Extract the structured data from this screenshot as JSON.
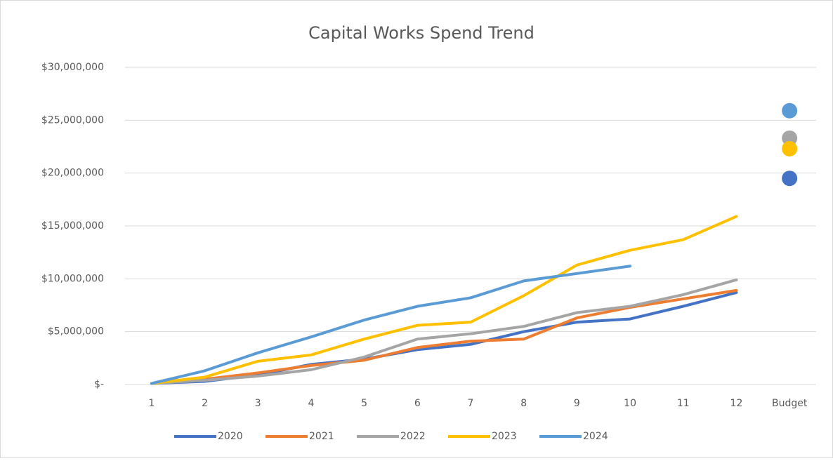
{
  "chart_data": {
    "type": "line",
    "title": "Capital Works Spend Trend",
    "categories": [
      "1",
      "2",
      "3",
      "4",
      "5",
      "6",
      "7",
      "8",
      "9",
      "10",
      "11",
      "12",
      "Budget"
    ],
    "series": [
      {
        "name": "2020",
        "color": "#4472c4",
        "values": [
          100000,
          300000,
          900000,
          1900000,
          2400000,
          3300000,
          3800000,
          5000000,
          5900000,
          6200000,
          7400000,
          8700000,
          19500000
        ]
      },
      {
        "name": "2021",
        "color": "#ed7d31",
        "values": [
          100000,
          500000,
          1100000,
          1800000,
          2300000,
          3500000,
          4100000,
          4300000,
          6300000,
          7300000,
          8100000,
          8900000,
          null
        ]
      },
      {
        "name": "2022",
        "color": "#a5a5a5",
        "values": [
          100000,
          400000,
          800000,
          1400000,
          2600000,
          4300000,
          4800000,
          5500000,
          6800000,
          7400000,
          8500000,
          9900000,
          23300000
        ]
      },
      {
        "name": "2023",
        "color": "#ffc000",
        "values": [
          100000,
          700000,
          2200000,
          2800000,
          4300000,
          5600000,
          5900000,
          8400000,
          11300000,
          12700000,
          13700000,
          15900000,
          22300000
        ]
      },
      {
        "name": "2024",
        "color": "#5b9bd5",
        "values": [
          100000,
          1300000,
          3000000,
          4500000,
          6100000,
          7400000,
          8200000,
          9800000,
          10500000,
          11200000,
          null,
          null,
          25900000
        ]
      }
    ],
    "ylim": [
      0,
      30000000
    ],
    "yticks": [
      {
        "value": 0,
        "label": "$-"
      },
      {
        "value": 5000000,
        "label": "$5,000,000"
      },
      {
        "value": 10000000,
        "label": "$10,000,000"
      },
      {
        "value": 15000000,
        "label": "$15,000,000"
      },
      {
        "value": 20000000,
        "label": "$20,000,000"
      },
      {
        "value": 25000000,
        "label": "$25,000,000"
      },
      {
        "value": 30000000,
        "label": "$30,000,000"
      }
    ],
    "grid": true,
    "legend": "bottom"
  }
}
